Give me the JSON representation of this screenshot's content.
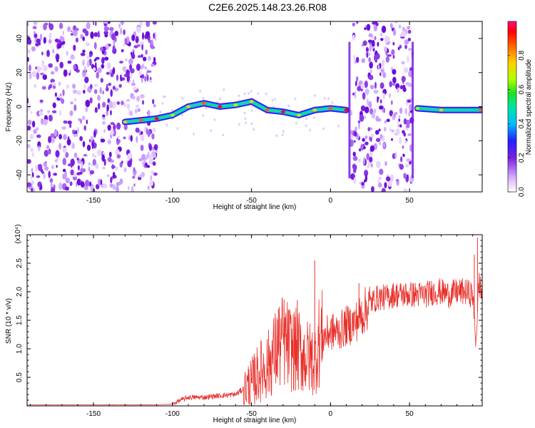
{
  "title": "C2E6.2025.148.23.26.R08",
  "chart_data": [
    {
      "type": "heatmap",
      "xlabel": "Height of straight line (km)",
      "ylabel": "Frequency (Hz)",
      "xlim": [
        -192,
        96
      ],
      "ylim": [
        -50,
        50
      ],
      "x_ticks": [
        -150,
        -100,
        -50,
        0,
        50
      ],
      "y_ticks": [
        -40,
        -20,
        0,
        20,
        40
      ],
      "colorbar": {
        "label": "Normalized spectral amplitude",
        "range": [
          0,
          1
        ],
        "ticks": [
          0.0,
          0.2,
          0.4,
          0.6,
          0.8
        ],
        "colormap": [
          "#ffffff",
          "#d9b3ff",
          "#7a1fe0",
          "#2020ff",
          "#00bfff",
          "#00e5a0",
          "#20e020",
          "#b0ff00",
          "#ffd000",
          "#ff6000",
          "#ff0000",
          "#ff1080"
        ]
      },
      "signal_track": [
        {
          "x": -130,
          "y": -9
        },
        {
          "x": -120,
          "y": -8
        },
        {
          "x": -110,
          "y": -7
        },
        {
          "x": -100,
          "y": -5
        },
        {
          "x": -90,
          "y": 0
        },
        {
          "x": -80,
          "y": 2
        },
        {
          "x": -70,
          "y": 0
        },
        {
          "x": -60,
          "y": 1
        },
        {
          "x": -50,
          "y": 3
        },
        {
          "x": -40,
          "y": -2
        },
        {
          "x": -30,
          "y": -3
        },
        {
          "x": -20,
          "y": -5
        },
        {
          "x": -10,
          "y": -2
        },
        {
          "x": 0,
          "y": -1
        },
        {
          "x": 10,
          "y": -2
        },
        {
          "x": 55,
          "y": -1
        },
        {
          "x": 70,
          "y": -2
        },
        {
          "x": 95,
          "y": -2
        }
      ],
      "noise_regions": [
        [
          -192,
          -110
        ],
        [
          13,
          52
        ]
      ],
      "transient_lines": [
        12,
        52
      ]
    },
    {
      "type": "line",
      "xlabel": "Height of straight line (km)",
      "ylabel": "SNR (10 * v/v)",
      "multiplier": "(x10⁴)",
      "xlim": [
        -192,
        96
      ],
      "ylim": [
        0,
        3.0
      ],
      "x_ticks": [
        -150,
        -100,
        -50,
        0,
        50
      ],
      "y_ticks": [
        0.5,
        1.0,
        1.5,
        2.0,
        2.5
      ],
      "series_color": "#e8312b",
      "x": [
        -192,
        -110,
        -100,
        -95,
        -90,
        -80,
        -70,
        -60,
        -50,
        -45,
        -40,
        -35,
        -30,
        -25,
        -20,
        -15,
        -10,
        -8,
        -5,
        0,
        5,
        10,
        15,
        20,
        25,
        30,
        35,
        40,
        45,
        50,
        55,
        60,
        65,
        70,
        75,
        80,
        85,
        90,
        92,
        94,
        96
      ],
      "y": [
        0.02,
        0.02,
        0.03,
        0.1,
        0.15,
        0.15,
        0.18,
        0.2,
        0.4,
        0.6,
        0.7,
        0.95,
        1.15,
        1.0,
        0.95,
        0.85,
        0.8,
        1.1,
        1.2,
        1.3,
        1.3,
        1.4,
        1.45,
        1.6,
        1.8,
        1.9,
        1.9,
        1.95,
        1.95,
        1.95,
        1.95,
        1.95,
        2.0,
        2.0,
        1.95,
        2.0,
        2.0,
        1.95,
        1.1,
        2.2,
        1.9
      ],
      "spikes": [
        {
          "x": -10,
          "y": 2.55
        },
        {
          "x": -21,
          "y": 1.85
        },
        {
          "x": -33,
          "y": 1.7
        },
        {
          "x": -50,
          "y": 0.5
        },
        {
          "x": 93,
          "y": 2.95
        },
        {
          "x": 91,
          "y": 2.65
        },
        {
          "x": 18,
          "y": 2.15
        }
      ]
    }
  ]
}
